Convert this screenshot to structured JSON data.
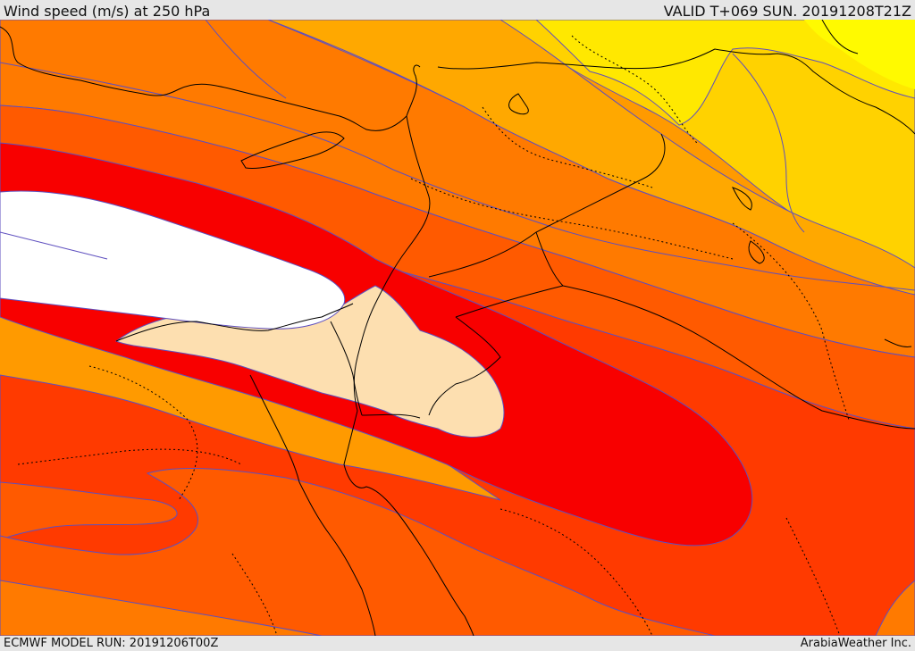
{
  "header": {
    "title": "Wind speed (m/s) at 250 hPa",
    "valid": "VALID T+069 SUN. 20191208T21Z"
  },
  "footer": {
    "model_run": "ECMWF MODEL RUN: 20191206T00Z",
    "credit": "ArabiaWeather Inc."
  },
  "colors": {
    "yellow": "#FFE800",
    "yellow_orange": "#FFD200",
    "light_orange": "#FFB800",
    "orange": "#FF9A00",
    "dark_orange": "#FF7A00",
    "orange_red": "#FF5A00",
    "red_orange": "#FF3A00",
    "red": "#F80000",
    "core_light": "#FDDFB0",
    "core_white": "#FFFFFF",
    "contour": "#5E4FBF",
    "coastline": "#000000"
  }
}
